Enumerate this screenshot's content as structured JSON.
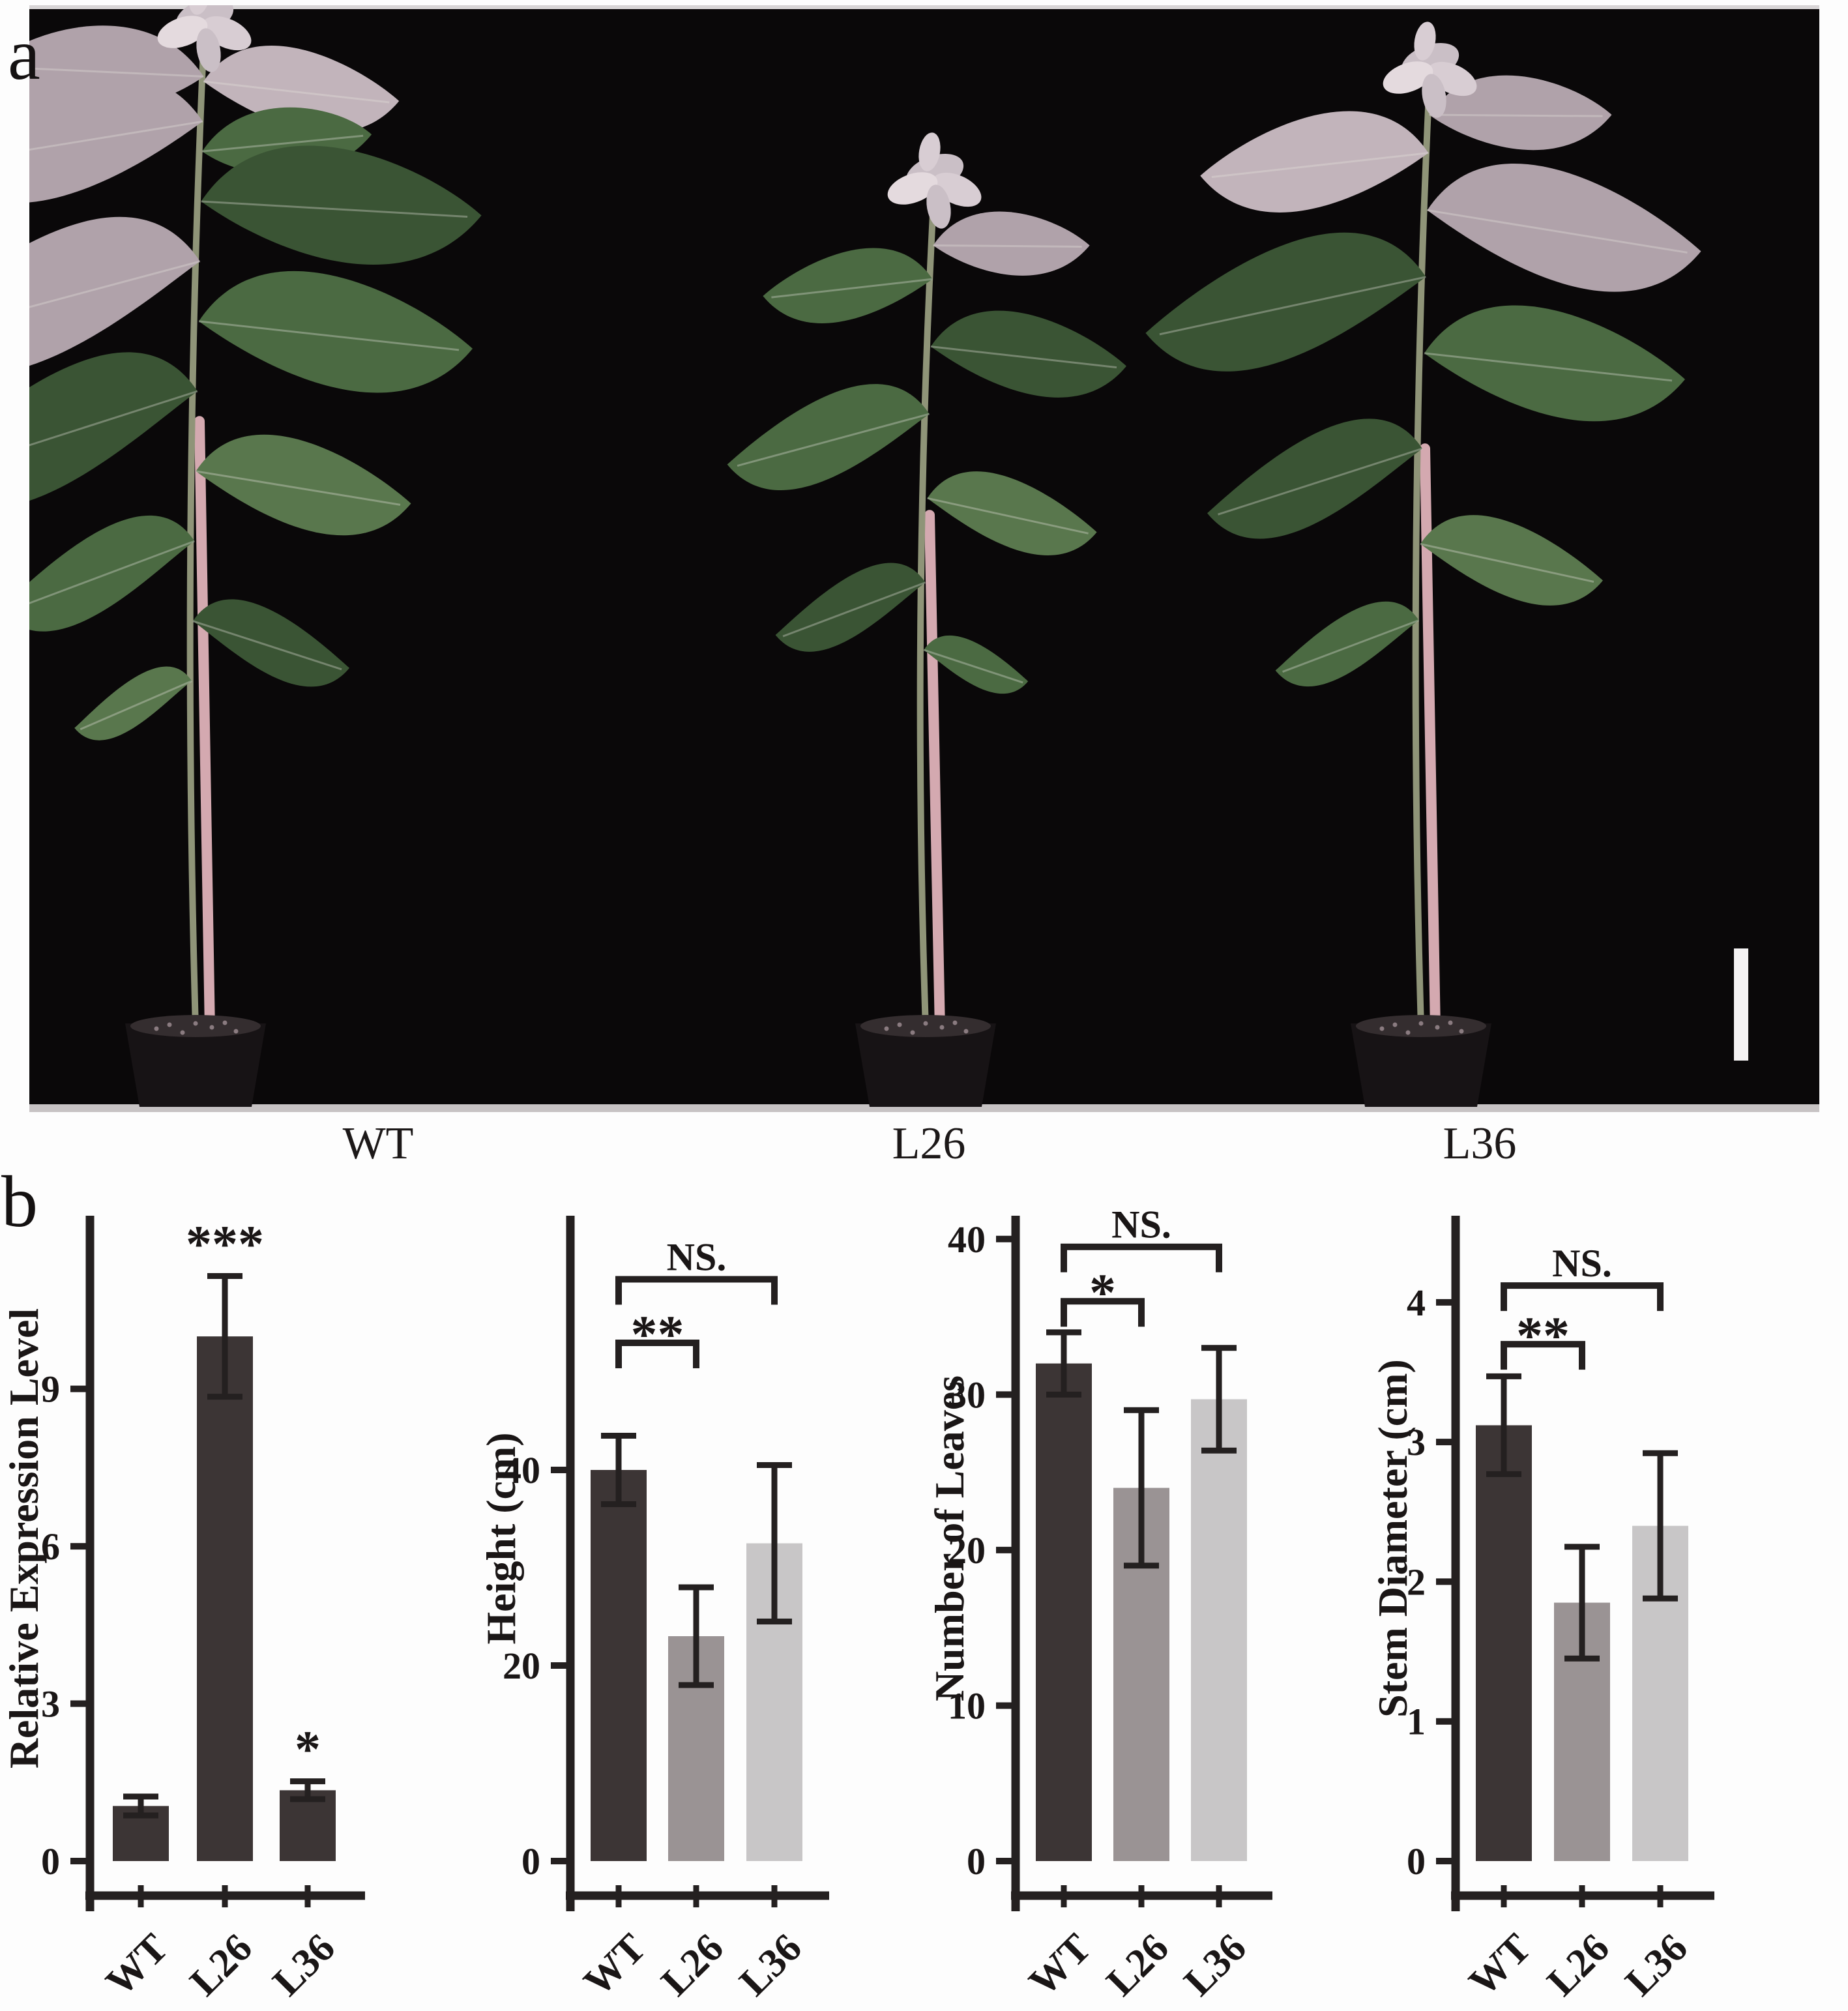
{
  "figure": {
    "panel_a_label": "a",
    "panel_b_label": "b",
    "photo_plant_labels": [
      "WT",
      "L26",
      "L36"
    ],
    "scale_bar": "white-vertical-bar"
  },
  "colors": {
    "bar_dark": "#3c3535",
    "bar_medium": "#9a9394",
    "bar_light": "#c8c6c7",
    "axis": "#242020",
    "text": "#1a1616",
    "photo_background": "#0a0809",
    "photo_bottom_edge": "#c7c3c4",
    "pot": "#171315",
    "soil": "#342d2f",
    "soil_speckle": "#8a7b80",
    "stake_pink": "#d4a9b0",
    "stem_green": "#8f9478",
    "leaf_greens": [
      "#3a5434",
      "#4b6a42",
      "#59774d",
      "#2f4a2b"
    ],
    "leaf_silvers": [
      "#b0a2aa",
      "#c2b4bb",
      "#9c8f98"
    ],
    "top_cluster": [
      "#cabfc6",
      "#d8cdd3",
      "#e4dade"
    ],
    "scale_bar": "#f5f3f4"
  },
  "chart_data": [
    {
      "type": "bar",
      "ylabel": "Relative Expression Level",
      "categories": [
        "WT",
        "L26",
        "L36"
      ],
      "values": [
        1.05,
        10.0,
        1.35
      ],
      "errors": [
        0.18,
        1.15,
        0.17
      ],
      "bar_colors": [
        "dark",
        "dark",
        "dark"
      ],
      "yticks": [
        0,
        3,
        6,
        9
      ],
      "ylim": [
        0,
        12.3
      ],
      "grid": false,
      "annotations": [
        {
          "category_index": 1,
          "text": "***"
        },
        {
          "category_index": 2,
          "text": "*"
        }
      ],
      "brackets": []
    },
    {
      "type": "bar",
      "ylabel": "Height (cm)",
      "categories": [
        "WT",
        "L26",
        "L36"
      ],
      "values": [
        40,
        23,
        32.5
      ],
      "errors": [
        3.5,
        5,
        8
      ],
      "bar_colors": [
        "dark",
        "medium",
        "light"
      ],
      "yticks": [
        0,
        20,
        40
      ],
      "ylim": [
        0,
        66
      ],
      "grid": false,
      "annotations": [],
      "brackets": [
        {
          "from": 0,
          "to": 1,
          "label": "**",
          "y": 53
        },
        {
          "from": 0,
          "to": 2,
          "label": "NS.",
          "y": 59.5
        }
      ]
    },
    {
      "type": "bar",
      "ylabel": "Number of Leaves",
      "categories": [
        "WT",
        "L26",
        "L36"
      ],
      "values": [
        32,
        24,
        29.7
      ],
      "errors": [
        2,
        5,
        3.3
      ],
      "bar_colors": [
        "dark",
        "medium",
        "light"
      ],
      "yticks": [
        0,
        10,
        20,
        30,
        40
      ],
      "ylim": [
        0,
        41.5
      ],
      "grid": false,
      "annotations": [],
      "brackets": [
        {
          "from": 0,
          "to": 1,
          "label": "*",
          "y": 36
        },
        {
          "from": 0,
          "to": 2,
          "label": "NS.",
          "y": 39.5
        }
      ]
    },
    {
      "type": "bar",
      "ylabel": "Stem Diameter (cm)",
      "categories": [
        "WT",
        "L26",
        "L36"
      ],
      "values": [
        3.12,
        1.85,
        2.4
      ],
      "errors": [
        0.35,
        0.4,
        0.52
      ],
      "bar_colors": [
        "dark",
        "medium",
        "light"
      ],
      "yticks": [
        0,
        1,
        2,
        3,
        4
      ],
      "ylim": [
        0,
        4.62
      ],
      "grid": false,
      "annotations": [],
      "brackets": [
        {
          "from": 0,
          "to": 1,
          "label": "**",
          "y": 3.7
        },
        {
          "from": 0,
          "to": 2,
          "label": "NS.",
          "y": 4.12
        }
      ]
    }
  ]
}
